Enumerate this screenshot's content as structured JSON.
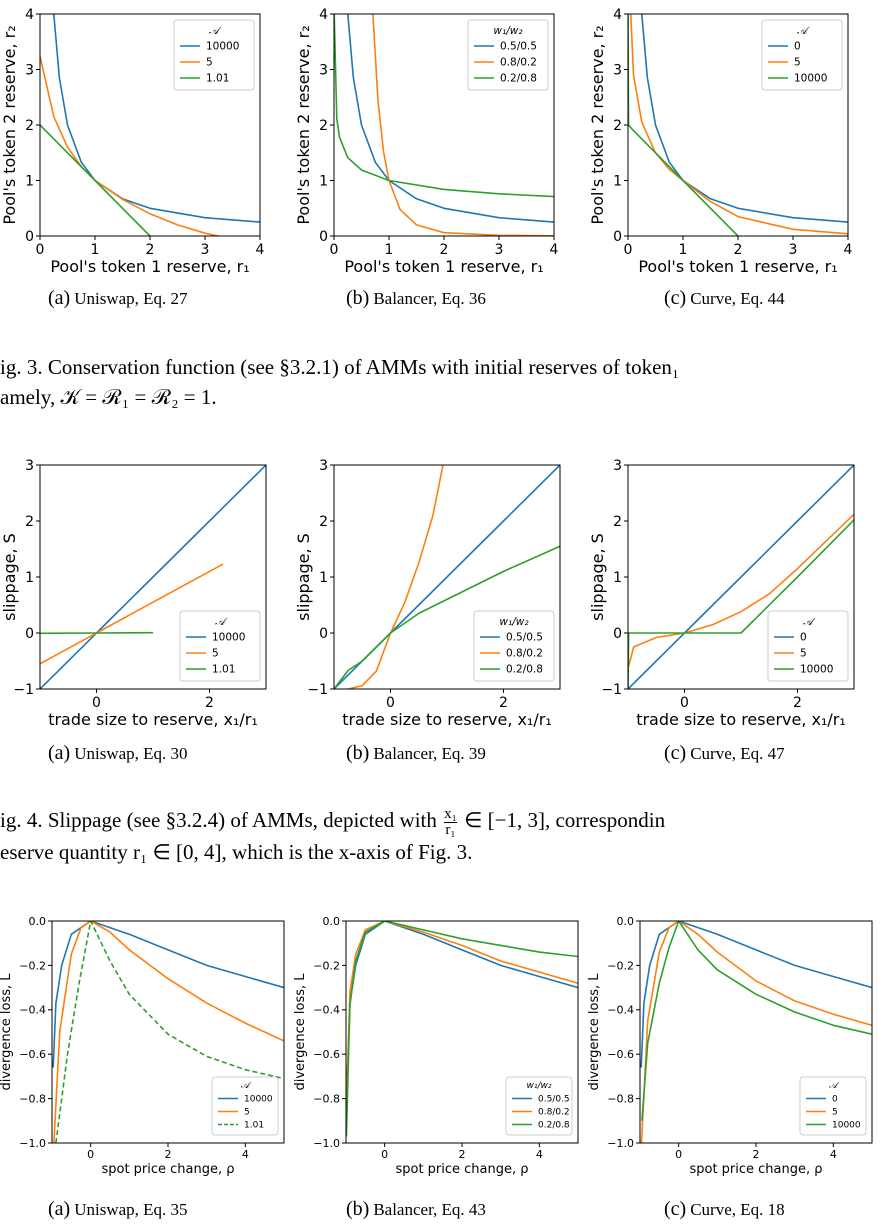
{
  "colors": {
    "blue": "#1f77b4",
    "orange": "#ff7f0e",
    "green": "#2ca02c"
  },
  "row1": {
    "xlabel": "Pool's token 1 reserve, r₁",
    "ylabel": "Pool's token 2 reserve, r₂",
    "xticks": [
      "0",
      "1",
      "2",
      "3",
      "4"
    ],
    "yticks": [
      "0",
      "1",
      "2",
      "3",
      "4"
    ],
    "panels": [
      {
        "legend_title": "𝒜",
        "legend": [
          "10000",
          "5",
          "1.01"
        ],
        "label": "(a)",
        "caption": "Uniswap, Eq. 27"
      },
      {
        "legend_title": "w₁/w₂",
        "legend": [
          "0.5/0.5",
          "0.8/0.2",
          "0.2/0.8"
        ],
        "label": "(b)",
        "caption": "Balancer, Eq. 36"
      },
      {
        "legend_title": "𝒜",
        "legend": [
          "0",
          "5",
          "10000"
        ],
        "label": "(c)",
        "caption": "Curve, Eq. 44"
      }
    ]
  },
  "fig3_caption": [
    "ig. 3.  Conservation function (see §3.2.1) of AMMs with initial reserves of token₁",
    "amely, 𝒦 = ℛ₁ = ℛ₂ = 1."
  ],
  "row2": {
    "xlabel": "trade size to reserve, x₁/r₁",
    "ylabel": "slippage, S",
    "xticks": [
      "0",
      "2"
    ],
    "yticks": [
      "−1",
      "0",
      "1",
      "2",
      "3"
    ],
    "panels": [
      {
        "legend_title": "𝒜",
        "legend": [
          "10000",
          "5",
          "1.01"
        ],
        "label": "(a)",
        "caption": "Uniswap, Eq. 30"
      },
      {
        "legend_title": "w₁/w₂",
        "legend": [
          "0.5/0.5",
          "0.8/0.2",
          "0.2/0.8"
        ],
        "label": "(b)",
        "caption": "Balancer, Eq. 39"
      },
      {
        "legend_title": "𝒜",
        "legend": [
          "0",
          "5",
          "10000"
        ],
        "label": "(c)",
        "caption": "Curve, Eq. 47"
      }
    ]
  },
  "fig4_caption_a": "ig. 4.  Slippage (see §3.2.4) of AMMs, depicted with ",
  "fig4_frac_num": "x₁",
  "fig4_frac_den": "r₁",
  "fig4_caption_b": " ∈ [−1, 3], correspondin",
  "fig4_caption_c": "eserve quantity r₁ ∈ [0, 4], which is the x-axis of Fig. 3.",
  "row3": {
    "xlabel": "spot price change, ρ",
    "ylabel": "divergence loss, L",
    "xticks": [
      "0",
      "2",
      "4"
    ],
    "yticks": [
      "−1.0",
      "−0.8",
      "−0.6",
      "−0.4",
      "−0.2",
      "0.0"
    ],
    "panels": [
      {
        "legend_title": "𝒜",
        "legend": [
          "10000",
          "5",
          "1.01"
        ],
        "label": "(a)",
        "caption": "Uniswap, Eq. 35"
      },
      {
        "legend_title": "w₁/w₂",
        "legend": [
          "0.5/0.5",
          "0.8/0.2",
          "0.2/0.8"
        ],
        "label": "(b)",
        "caption": "Balancer, Eq. 43"
      },
      {
        "legend_title": "𝒜",
        "legend": [
          "0",
          "5",
          "10000"
        ],
        "label": "(c)",
        "caption": "Curve, Eq. 18"
      }
    ]
  },
  "chart_data": [
    {
      "type": "line",
      "title": "(a) Uniswap, Eq. 27",
      "xlabel": "Pool's token 1 reserve, r₁",
      "ylabel": "Pool's token 2 reserve, r₂",
      "xlim": [
        0,
        4
      ],
      "ylim": [
        0,
        4
      ],
      "legend_placement": "top-right",
      "series": [
        {
          "name": "10000",
          "x": [
            0.25,
            0.35,
            0.5,
            0.75,
            1,
            1.5,
            2,
            3,
            4
          ],
          "y": [
            4,
            2.86,
            2,
            1.33,
            1,
            0.67,
            0.5,
            0.33,
            0.25
          ]
        },
        {
          "name": "5",
          "x": [
            0,
            0.25,
            0.5,
            0.75,
            1,
            1.5,
            2,
            2.5,
            3,
            3.24
          ],
          "y": [
            3.24,
            2.15,
            1.6,
            1.25,
            1,
            0.66,
            0.4,
            0.2,
            0.05,
            0
          ]
        },
        {
          "name": "1.01",
          "x": [
            0,
            0.5,
            1,
            1.5,
            2
          ],
          "y": [
            2,
            1.5,
            1,
            0.5,
            0
          ]
        }
      ]
    },
    {
      "type": "line",
      "title": "(b) Balancer, Eq. 36",
      "xlabel": "Pool's token 1 reserve, r₁",
      "ylabel": "Pool's token 2 reserve, r₂",
      "xlim": [
        0,
        4
      ],
      "ylim": [
        0,
        4
      ],
      "legend_placement": "top-right",
      "series": [
        {
          "name": "0.5/0.5",
          "x": [
            0.25,
            0.35,
            0.5,
            0.75,
            1,
            1.5,
            2,
            3,
            4
          ],
          "y": [
            4,
            2.86,
            2,
            1.33,
            1,
            0.67,
            0.5,
            0.33,
            0.25
          ]
        },
        {
          "name": "0.8/0.2",
          "x": [
            0.707,
            0.8,
            0.9,
            1,
            1.2,
            1.5,
            2,
            3,
            4
          ],
          "y": [
            4,
            2.44,
            1.52,
            1,
            0.48,
            0.2,
            0.06,
            0.012,
            0.004
          ]
        },
        {
          "name": "0.2/0.8",
          "x": [
            0.004,
            0.05,
            0.1,
            0.25,
            0.5,
            1,
            2,
            3,
            4
          ],
          "y": [
            4,
            2.11,
            1.78,
            1.41,
            1.19,
            1,
            0.84,
            0.76,
            0.71
          ]
        }
      ]
    },
    {
      "type": "line",
      "title": "(c) Curve, Eq. 44",
      "xlabel": "Pool's token 1 reserve, r₁",
      "ylabel": "Pool's token 2 reserve, r₂",
      "xlim": [
        0,
        4
      ],
      "ylim": [
        0,
        4
      ],
      "legend_placement": "top-right",
      "series": [
        {
          "name": "0",
          "x": [
            0.25,
            0.35,
            0.5,
            0.75,
            1,
            1.5,
            2,
            3,
            4
          ],
          "y": [
            4,
            2.86,
            2,
            1.33,
            1,
            0.67,
            0.5,
            0.33,
            0.25
          ]
        },
        {
          "name": "5",
          "x": [
            0.05,
            0.1,
            0.25,
            0.5,
            0.75,
            1,
            1.5,
            2,
            3,
            4
          ],
          "y": [
            4,
            2.9,
            2.05,
            1.5,
            1.2,
            1,
            0.62,
            0.35,
            0.12,
            0.04
          ]
        },
        {
          "name": "10000",
          "x": [
            0,
            0.01,
            0.1,
            0.5,
            1,
            1.5,
            2
          ],
          "y": [
            4,
            2,
            1.9,
            1.5,
            1,
            0.5,
            0
          ]
        }
      ]
    },
    {
      "type": "line",
      "title": "(a) Uniswap, Eq. 30",
      "xlabel": "trade size to reserve, x₁/r₁",
      "ylabel": "slippage, S",
      "xlim": [
        -1,
        3
      ],
      "ylim": [
        -1,
        3
      ],
      "legend_placement": "lower-right",
      "series": [
        {
          "name": "10000",
          "x": [
            -1,
            0,
            1,
            2,
            3
          ],
          "y": [
            -1,
            0,
            1,
            2,
            3
          ]
        },
        {
          "name": "5",
          "x": [
            -1,
            0,
            1,
            2.24
          ],
          "y": [
            -0.55,
            0,
            0.55,
            1.23
          ]
        },
        {
          "name": "1.01",
          "x": [
            -1,
            0,
            1
          ],
          "y": [
            -0.005,
            0,
            0.005
          ]
        }
      ]
    },
    {
      "type": "line",
      "title": "(b) Balancer, Eq. 39",
      "xlabel": "trade size to reserve, x₁/r₁",
      "ylabel": "slippage, S",
      "xlim": [
        -1,
        3
      ],
      "ylim": [
        -1,
        3
      ],
      "legend_placement": "lower-right",
      "series": [
        {
          "name": "0.5/0.5",
          "x": [
            -1,
            0,
            1,
            2,
            3
          ],
          "y": [
            -1,
            0,
            1,
            2,
            3
          ]
        },
        {
          "name": "0.8/0.2",
          "x": [
            -0.75,
            -0.5,
            -0.25,
            0,
            0.25,
            0.5,
            0.75,
            0.93
          ],
          "y": [
            -1,
            -0.94,
            -0.68,
            0,
            0.54,
            1.25,
            2.1,
            3
          ]
        },
        {
          "name": "0.2/0.8",
          "x": [
            -1,
            -0.75,
            -0.5,
            0,
            0.5,
            1,
            2,
            3
          ],
          "y": [
            -1,
            -0.67,
            -0.5,
            0,
            0.35,
            0.6,
            1.1,
            1.55
          ]
        }
      ]
    },
    {
      "type": "line",
      "title": "(c) Curve, Eq. 47",
      "xlabel": "trade size to reserve, x₁/r₁",
      "ylabel": "slippage, S",
      "xlim": [
        -1,
        3
      ],
      "ylim": [
        -1,
        3
      ],
      "legend_placement": "lower-right",
      "series": [
        {
          "name": "0",
          "x": [
            -1,
            0,
            1,
            2,
            3
          ],
          "y": [
            -1,
            0,
            1,
            2,
            3
          ]
        },
        {
          "name": "5",
          "x": [
            -0.99,
            -0.9,
            -0.5,
            0,
            0.5,
            1,
            1.5,
            2,
            3
          ],
          "y": [
            -0.6,
            -0.25,
            -0.08,
            0,
            0.15,
            0.38,
            0.7,
            1.15,
            2.12
          ]
        },
        {
          "name": "10000",
          "x": [
            -1,
            -0.99,
            0,
            1,
            2,
            3
          ],
          "y": [
            -1,
            0,
            0,
            0,
            1,
            2.02
          ]
        }
      ]
    },
    {
      "type": "line",
      "title": "(a) Uniswap, Eq. 35",
      "xlabel": "spot price change, ρ",
      "ylabel": "divergence loss, L",
      "xlim": [
        -1,
        5
      ],
      "ylim": [
        -1,
        0
      ],
      "legend_placement": "lower-right",
      "series": [
        {
          "name": "10000",
          "x": [
            -0.97,
            -0.9,
            -0.75,
            -0.5,
            0,
            1,
            2,
            3,
            4,
            5
          ],
          "y": [
            -0.66,
            -0.37,
            -0.2,
            -0.06,
            0,
            -0.06,
            -0.13,
            -0.2,
            -0.25,
            -0.3
          ]
        },
        {
          "name": "5",
          "x": [
            -0.95,
            -0.8,
            -0.5,
            -0.25,
            0,
            0.5,
            1,
            2,
            3,
            4,
            5
          ],
          "y": [
            -1,
            -0.5,
            -0.15,
            -0.03,
            0,
            -0.05,
            -0.13,
            -0.26,
            -0.37,
            -0.46,
            -0.54
          ]
        },
        {
          "name": "1.01",
          "x": [
            -0.9,
            -0.6,
            -0.3,
            0,
            0.5,
            1,
            2,
            3,
            4,
            5
          ],
          "y": [
            -1,
            -0.6,
            -0.28,
            0,
            -0.18,
            -0.33,
            -0.51,
            -0.61,
            -0.67,
            -0.71
          ]
        }
      ]
    },
    {
      "type": "line",
      "title": "(b) Balancer, Eq. 43",
      "xlabel": "spot price change, ρ",
      "ylabel": "divergence loss, L",
      "xlim": [
        -1,
        5
      ],
      "ylim": [
        -1,
        0
      ],
      "legend_placement": "lower-right",
      "series": [
        {
          "name": "0.5/0.5",
          "x": [
            -0.99,
            -0.9,
            -0.75,
            -0.5,
            0,
            1,
            2,
            3,
            4,
            5
          ],
          "y": [
            -0.8,
            -0.37,
            -0.2,
            -0.06,
            0,
            -0.06,
            -0.13,
            -0.2,
            -0.25,
            -0.3
          ]
        },
        {
          "name": "0.8/0.2",
          "x": [
            -0.99,
            -0.9,
            -0.75,
            -0.5,
            0,
            1,
            2,
            3,
            4,
            5
          ],
          "y": [
            -0.85,
            -0.32,
            -0.15,
            -0.04,
            0,
            -0.05,
            -0.11,
            -0.18,
            -0.23,
            -0.28
          ]
        },
        {
          "name": "0.2/0.8",
          "x": [
            -0.99,
            -0.9,
            -0.75,
            -0.5,
            0,
            1,
            2,
            3,
            4,
            5
          ],
          "y": [
            -0.97,
            -0.38,
            -0.18,
            -0.05,
            0,
            -0.04,
            -0.08,
            -0.11,
            -0.14,
            -0.16
          ]
        }
      ]
    },
    {
      "type": "line",
      "title": "(c) Curve, Eq. 18",
      "xlabel": "spot price change, ρ",
      "ylabel": "divergence loss, L",
      "xlim": [
        -1,
        5
      ],
      "ylim": [
        -1,
        0
      ],
      "legend_placement": "lower-right",
      "series": [
        {
          "name": "0",
          "x": [
            -0.97,
            -0.9,
            -0.75,
            -0.5,
            0,
            1,
            2,
            3,
            4,
            5
          ],
          "y": [
            -0.66,
            -0.37,
            -0.2,
            -0.06,
            0,
            -0.06,
            -0.13,
            -0.2,
            -0.25,
            -0.3
          ]
        },
        {
          "name": "5",
          "x": [
            -0.96,
            -0.8,
            -0.5,
            -0.25,
            0,
            0.5,
            1,
            2,
            3,
            4,
            5
          ],
          "y": [
            -1,
            -0.45,
            -0.14,
            -0.03,
            0,
            -0.06,
            -0.14,
            -0.27,
            -0.36,
            -0.42,
            -0.47
          ]
        },
        {
          "name": "10000",
          "x": [
            -0.95,
            -0.8,
            -0.5,
            -0.25,
            0,
            0.5,
            1,
            2,
            3,
            4,
            5
          ],
          "y": [
            -0.9,
            -0.55,
            -0.28,
            -0.12,
            0,
            -0.13,
            -0.22,
            -0.33,
            -0.41,
            -0.47,
            -0.51
          ]
        }
      ]
    }
  ]
}
